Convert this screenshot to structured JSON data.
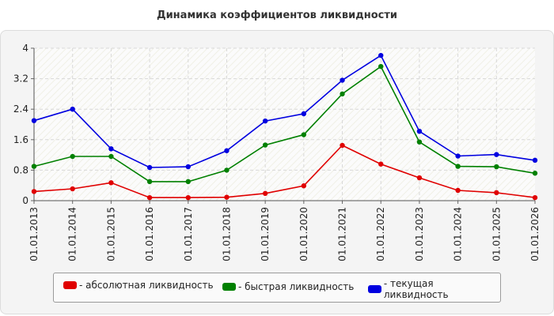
{
  "chart_data": {
    "type": "line",
    "title": "Динамика коэффициентов ликвидности",
    "xlabel": "",
    "ylabel": "",
    "ylim": [
      0,
      4
    ],
    "yticks": [
      "0",
      "0.8",
      "1.6",
      "2.4",
      "3.2",
      "4"
    ],
    "grid": true,
    "legend_position": "bottom",
    "categories": [
      "01.01.2013",
      "01.01.2014",
      "01.01.2015",
      "01.01.2016",
      "01.01.2017",
      "01.01.2018",
      "01.01.2019",
      "01.01.2020",
      "01.01.2021",
      "01.01.2022",
      "01.01.2023",
      "01.01.2024",
      "01.01.2025",
      "01.01.2026"
    ],
    "series": [
      {
        "name": "- абсолютная ликвидность",
        "color": "#e00000",
        "values": [
          0.24,
          0.31,
          0.47,
          0.08,
          0.08,
          0.09,
          0.19,
          0.39,
          1.45,
          0.96,
          0.6,
          0.27,
          0.21,
          0.08
        ]
      },
      {
        "name": "- быстрая ликвидность",
        "color": "#008000",
        "values": [
          0.9,
          1.16,
          1.16,
          0.5,
          0.5,
          0.8,
          1.46,
          1.73,
          2.8,
          3.52,
          1.54,
          0.9,
          0.89,
          0.72
        ]
      },
      {
        "name": "- текущая ликвидность",
        "color": "#0000e0",
        "values": [
          2.1,
          2.4,
          1.36,
          0.87,
          0.89,
          1.31,
          2.09,
          2.28,
          3.16,
          3.81,
          1.82,
          1.17,
          1.21,
          1.06
        ]
      }
    ]
  }
}
